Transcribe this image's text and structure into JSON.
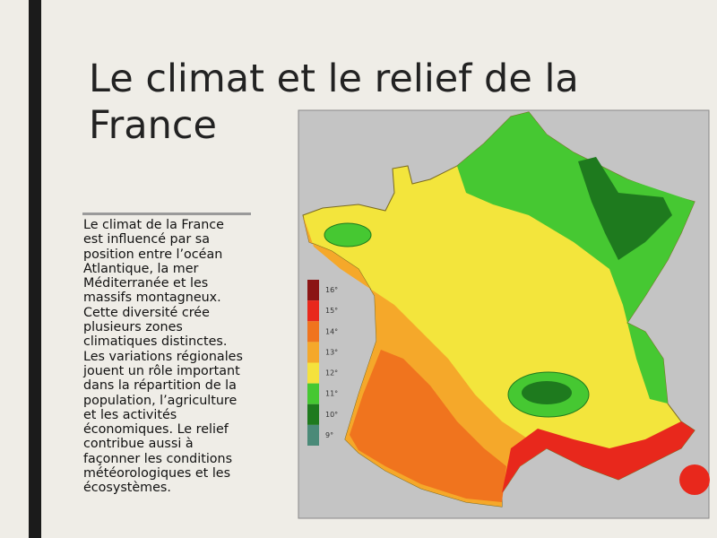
{
  "slide": {
    "title": "Le climat et le relief de la France",
    "body": "Le climat de la France est influencé par sa position entre l’océan Atlantique, la mer Méditerranée et les massifs montagneux. Cette diversité crée plusieurs zones climatiques distinctes. Les variations régionales jouent un rôle important dans la répartition de la population, l’agriculture et les activités économiques. Le relief contribue aussi à façonner les conditions météorologiques et les écosystèmes.",
    "map_legend": [
      {
        "label": "16°",
        "color": "#8b1414"
      },
      {
        "label": "15°",
        "color": "#e8281c"
      },
      {
        "label": "14°",
        "color": "#f0741e"
      },
      {
        "label": "13°",
        "color": "#f5a82a"
      },
      {
        "label": "12°",
        "color": "#f5e23c"
      },
      {
        "label": "11°",
        "color": "#46c832"
      },
      {
        "label": "10°",
        "color": "#1e7a1e"
      },
      {
        "label": "9°",
        "color": "#4a8a78"
      }
    ]
  }
}
